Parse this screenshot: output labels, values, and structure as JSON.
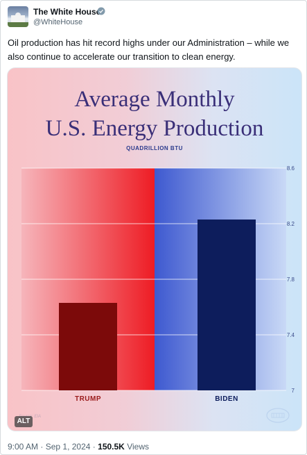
{
  "account": {
    "name": "The White House",
    "handle": "@WhiteHouse"
  },
  "tweet": {
    "text": "Oil production has hit record highs under our Administration – while we also continue to accelerate our transition to clean energy.",
    "alt_badge": "ALT"
  },
  "footer": {
    "time": "9:00 AM",
    "separator": "·",
    "date": "Sep 1, 2024",
    "views_count": "150.5K",
    "views_label": "Views"
  },
  "colors": {
    "trump_bar": "#7c0a0a",
    "biden_bar": "#0d1d5c",
    "title": "#3a2f78"
  },
  "chart_data": {
    "type": "bar",
    "title_line1": "Average Monthly",
    "title_line2": "U.S. Energy Production",
    "subtitle": "QUADRILLION BTU",
    "categories": [
      "TRUMP",
      "BIDEN"
    ],
    "values": [
      7.63,
      8.23
    ],
    "ylim": [
      7,
      8.6
    ],
    "yticks": [
      7,
      7.4,
      7.8,
      8.2,
      8.6
    ],
    "ytick_labels": [
      "7",
      "7.4",
      "7.8",
      "8.2",
      "8.6"
    ],
    "grid": true,
    "source": "Source: EIA"
  }
}
